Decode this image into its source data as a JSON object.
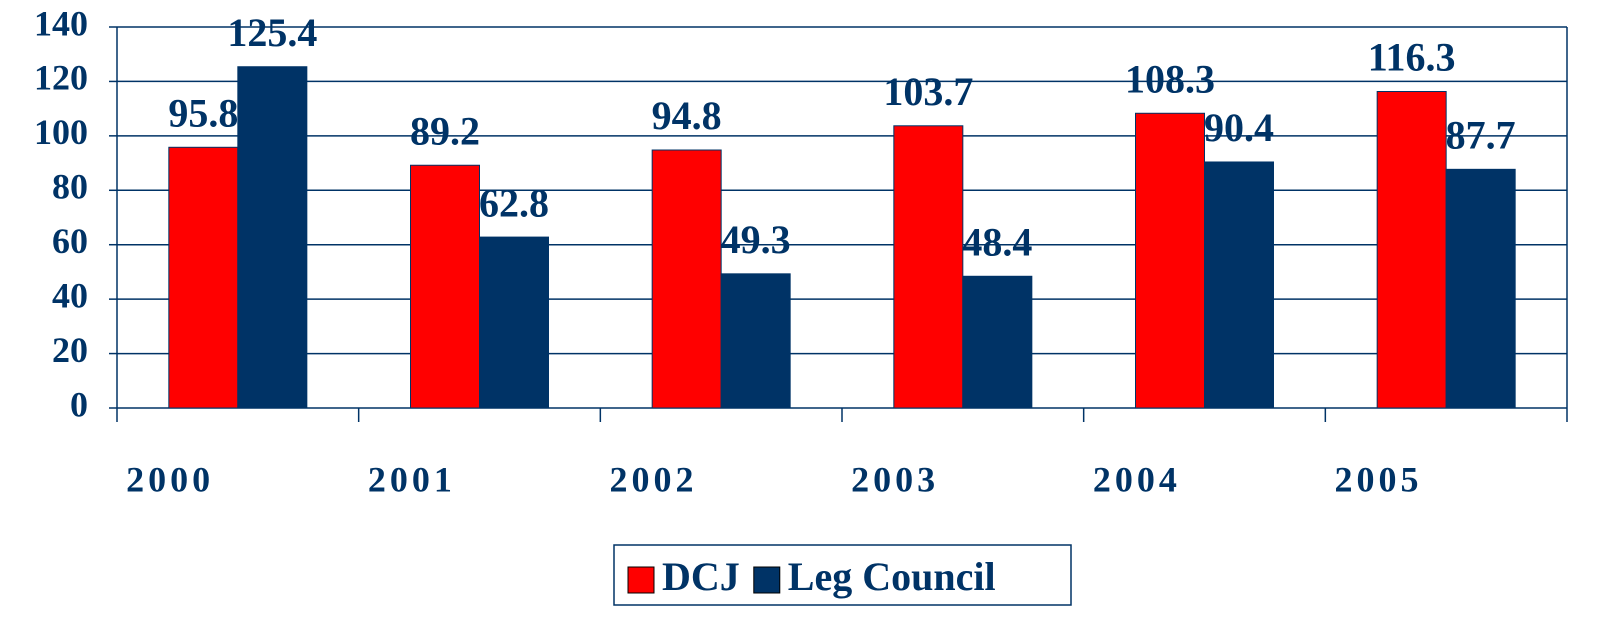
{
  "chart_data": {
    "type": "bar",
    "categories": [
      "2000",
      "2001",
      "2002",
      "2003",
      "2004",
      "2005"
    ],
    "series": [
      {
        "name": "DCJ",
        "color": "#ff0000",
        "values": [
          95.8,
          89.2,
          94.8,
          103.7,
          108.3,
          116.3
        ]
      },
      {
        "name": "Leg Council",
        "color": "#003366",
        "values": [
          125.4,
          62.8,
          49.3,
          48.4,
          90.4,
          87.7
        ]
      }
    ],
    "ylim": [
      0,
      140
    ],
    "yticks": [
      0,
      20,
      40,
      60,
      80,
      100,
      120,
      140
    ],
    "grid": true,
    "legend": "bottom"
  }
}
